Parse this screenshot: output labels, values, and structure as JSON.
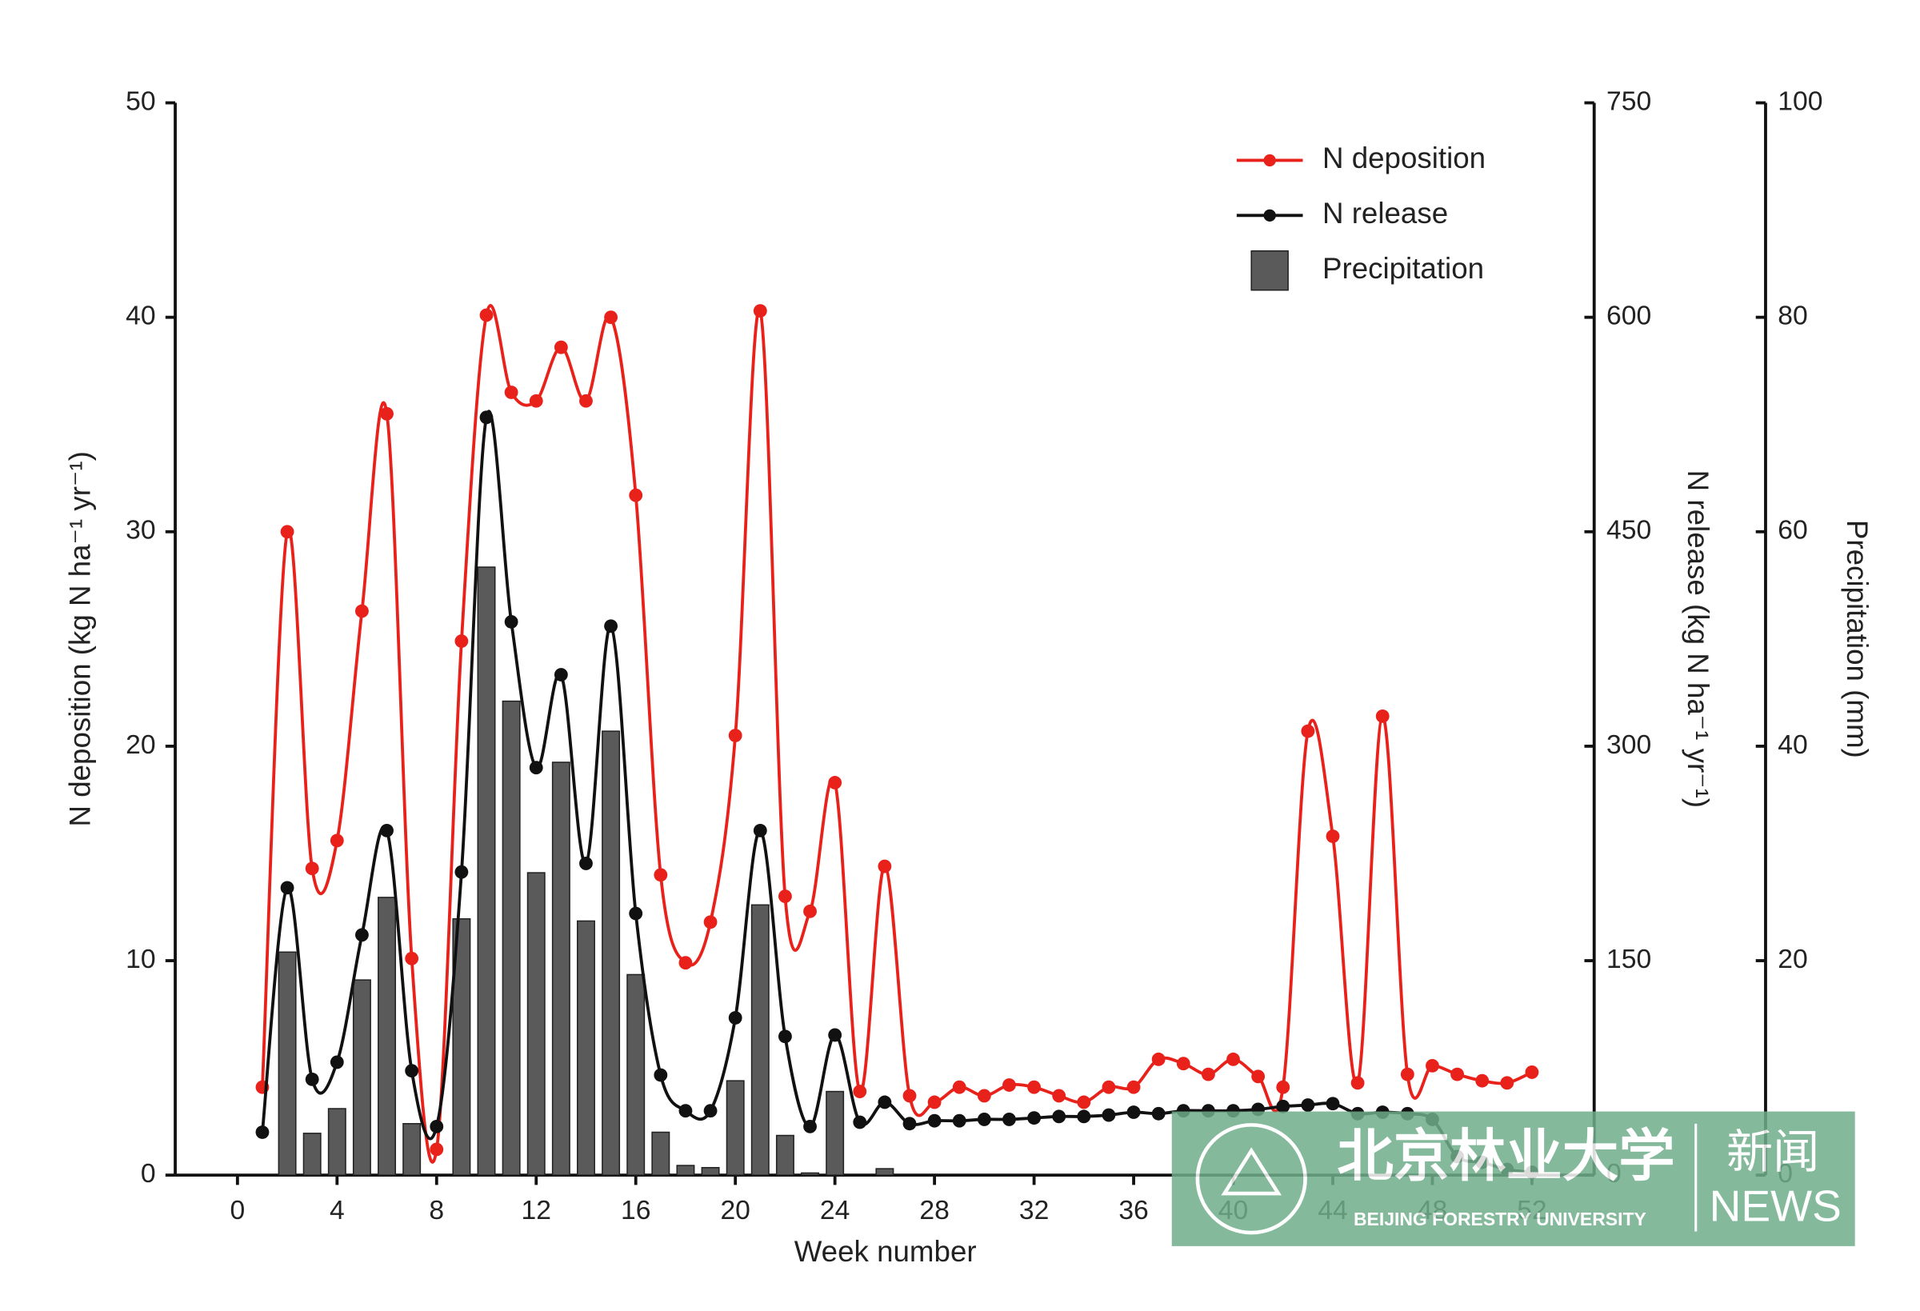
{
  "chart_data": {
    "type": "combo",
    "xlabel": "Week number",
    "ylabel": "N deposition (kg N ha⁻¹ yr⁻¹)",
    "y2label": "N release (kg N ha⁻¹ yr⁻¹)",
    "y3label": "Precipitation (mm)",
    "x": [
      1,
      2,
      3,
      4,
      5,
      6,
      7,
      8,
      9,
      10,
      11,
      12,
      13,
      14,
      15,
      16,
      17,
      18,
      19,
      20,
      21,
      22,
      23,
      24,
      25,
      26,
      27,
      28,
      29,
      30,
      31,
      32,
      33,
      34,
      35,
      36,
      37,
      38,
      39,
      40,
      41,
      42,
      43,
      44,
      45,
      46,
      47,
      48,
      49,
      50,
      51,
      52
    ],
    "xlim": [
      -2.5,
      54.5
    ],
    "xticks": [
      0,
      4,
      8,
      12,
      16,
      20,
      24,
      28,
      32,
      36,
      40,
      44,
      48,
      52
    ],
    "ylim": [
      0,
      50
    ],
    "yticks": [
      0,
      10,
      20,
      30,
      40,
      50
    ],
    "y2lim": [
      0,
      750
    ],
    "y2ticks": [
      0,
      150,
      300,
      450,
      600,
      750
    ],
    "y3lim": [
      0,
      100
    ],
    "y3ticks": [
      0,
      20,
      40,
      60,
      80,
      100
    ],
    "legend": "upper right",
    "series": [
      {
        "name": "N deposition",
        "type": "line",
        "color": "#e8221b",
        "axis": "y",
        "values": [
          4.1,
          30.0,
          14.3,
          15.6,
          26.3,
          35.5,
          10.1,
          1.2,
          24.9,
          40.1,
          36.5,
          36.1,
          38.6,
          36.1,
          40.0,
          31.7,
          14.0,
          9.9,
          11.8,
          20.5,
          40.3,
          13.0,
          12.3,
          18.3,
          3.9,
          14.4,
          3.7,
          3.4,
          4.1,
          3.7,
          4.2,
          4.1,
          3.7,
          3.4,
          4.1,
          4.1,
          5.4,
          5.2,
          4.7,
          5.4,
          4.6,
          4.1,
          20.7,
          15.8,
          4.3,
          21.4,
          4.7,
          5.1,
          4.7,
          4.4,
          4.3,
          4.8
        ]
      },
      {
        "name": "N release",
        "type": "line",
        "color": "#111111",
        "axis": "y2",
        "values": [
          30,
          201,
          67,
          79,
          168,
          241,
          73,
          34,
          212,
          530,
          387,
          285,
          350,
          218,
          384,
          183,
          70,
          45,
          45,
          110,
          241,
          97,
          34,
          98,
          37,
          51,
          36,
          38,
          38,
          39,
          39,
          40,
          41,
          41,
          42,
          44,
          43,
          45,
          45,
          45,
          46,
          48,
          49,
          50,
          43,
          44,
          43,
          39,
          13,
          9,
          4,
          2
        ]
      },
      {
        "name": "Precipitation",
        "type": "bar",
        "color": "#5a5a5a",
        "axis": "y3",
        "values": [
          0,
          20.8,
          3.9,
          6.2,
          18.2,
          25.9,
          4.8,
          0,
          23.9,
          56.7,
          44.2,
          28.2,
          38.5,
          23.7,
          41.4,
          18.7,
          4.0,
          0.9,
          0.7,
          8.8,
          25.2,
          3.7,
          0.2,
          7.8,
          0,
          0.6,
          0,
          0,
          0,
          0,
          0,
          0,
          0,
          0,
          0,
          0,
          0,
          0,
          0,
          0,
          0,
          0,
          0,
          0,
          0,
          0,
          0,
          0,
          0,
          0,
          0,
          0
        ]
      }
    ]
  },
  "watermark": {
    "name_cn": "北京林业大学",
    "name_en": "BEIJING FORESTRY UNIVERSITY",
    "news_cn": "新闻",
    "news_en": "NEWS"
  }
}
